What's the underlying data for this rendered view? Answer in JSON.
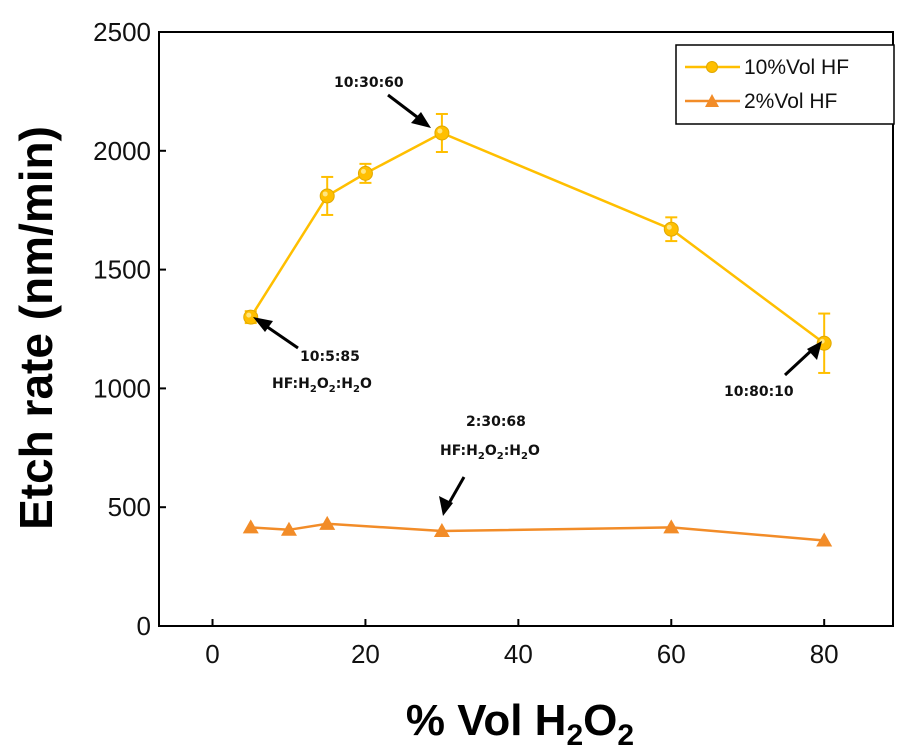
{
  "chart_data": {
    "type": "line",
    "xlabel": "% Vol H2O2",
    "xlabel_parts": {
      "main": "% Vol H",
      "sub1": "2",
      "mid": "O",
      "sub2": "2"
    },
    "ylabel": "Etch rate (nm/min)",
    "xlim": [
      -7,
      89
    ],
    "ylim": [
      0,
      2500
    ],
    "xticks": [
      0,
      20,
      40,
      60,
      80
    ],
    "yticks": [
      0,
      500,
      1000,
      1500,
      2000,
      2500
    ],
    "grid": false,
    "legend_position": "top-right",
    "series": [
      {
        "name": "10%Vol HF",
        "color": "#FFBF00",
        "marker": "circle",
        "x": [
          5,
          15,
          20,
          30,
          60,
          80
        ],
        "y": [
          1300,
          1810,
          1905,
          2075,
          1670,
          1190
        ],
        "err": [
          25,
          80,
          40,
          80,
          50,
          125
        ]
      },
      {
        "name": "2%Vol HF",
        "color": "#F28C28",
        "marker": "triangle",
        "x": [
          5,
          10,
          15,
          30,
          60,
          80
        ],
        "y": [
          415,
          405,
          430,
          400,
          415,
          360
        ],
        "err": [
          0,
          0,
          0,
          0,
          0,
          0
        ]
      }
    ],
    "annotations": [
      {
        "id": "a1",
        "line1": "10:30:60",
        "subscript_formula": false
      },
      {
        "id": "a2",
        "line1": "10:5:85",
        "subscript_formula": true
      },
      {
        "id": "a3",
        "line1": "10:80:10",
        "subscript_formula": false
      },
      {
        "id": "a4",
        "line1": "2:30:68",
        "subscript_formula": true
      }
    ],
    "formula": {
      "hf": "HF:H",
      "s1": "2",
      "o": "O",
      "s2": "2",
      "h": ":H",
      "s3": "2",
      "end": "O"
    }
  }
}
